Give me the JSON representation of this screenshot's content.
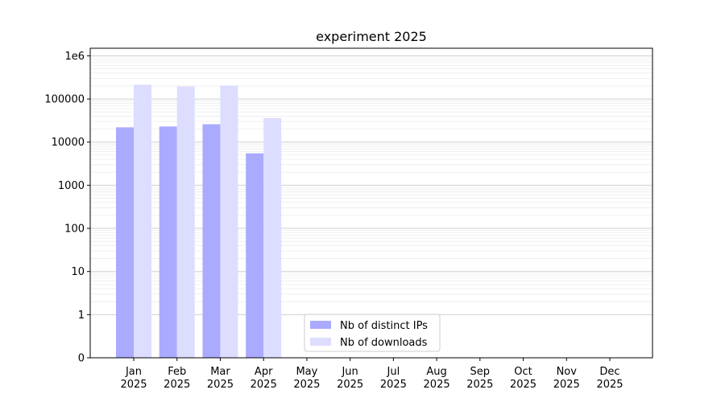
{
  "chart_data": {
    "type": "bar",
    "title": "experiment 2025",
    "xlabel": "",
    "ylabel": "",
    "y_scale": "symlog",
    "ylim": [
      0,
      1500000
    ],
    "yticks": [
      0,
      1,
      10,
      100,
      1000,
      10000,
      100000,
      1000000
    ],
    "ytick_labels": [
      "0",
      "1",
      "10",
      "100",
      "1000",
      "10000",
      "100000",
      "1e6"
    ],
    "categories": [
      "Jan\n2025",
      "Feb\n2025",
      "Mar\n2025",
      "Apr\n2025",
      "May\n2025",
      "Jun\n2025",
      "Jul\n2025",
      "Aug\n2025",
      "Sep\n2025",
      "Oct\n2025",
      "Nov\n2025",
      "Dec\n2025"
    ],
    "series": [
      {
        "name": "Nb of distinct IPs",
        "color": "#aaaaff",
        "values": [
          22000,
          23000,
          26000,
          5500,
          0,
          0,
          0,
          0,
          0,
          0,
          0,
          0
        ]
      },
      {
        "name": "Nb of downloads",
        "color": "#ddddff",
        "values": [
          215000,
          195000,
          205000,
          36000,
          0,
          0,
          0,
          0,
          0,
          0,
          0,
          0
        ]
      }
    ],
    "grid": {
      "major": true,
      "minor": true
    },
    "legend_position": "bottom-center"
  }
}
